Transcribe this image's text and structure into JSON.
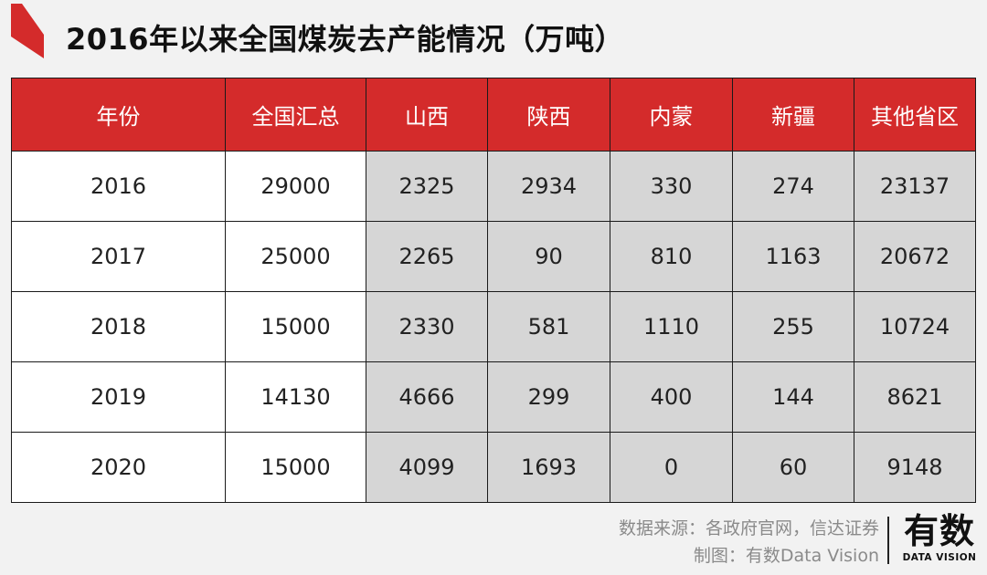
{
  "title": "2016年以来全国煤炭去产能情况（万吨）",
  "colors": {
    "header_bg": "#d42b2b",
    "header_text": "#ffffff",
    "accent_mark": "#d42b2b",
    "cell_white": "#ffffff",
    "cell_gray": "#d6d6d6",
    "background": "#f2f2f2"
  },
  "chart_data": {
    "type": "table",
    "title": "2016年以来全国煤炭去产能情况（万吨）",
    "columns": [
      "年份",
      "全国汇总",
      "山西",
      "陕西",
      "内蒙",
      "新疆",
      "其他省区"
    ],
    "rows": [
      [
        "2016",
        "29000",
        "2325",
        "2934",
        "330",
        "274",
        "23137"
      ],
      [
        "2017",
        "25000",
        "2265",
        "90",
        "810",
        "1163",
        "20672"
      ],
      [
        "2018",
        "15000",
        "2330",
        "581",
        "1110",
        "255",
        "10724"
      ],
      [
        "2019",
        "14130",
        "4666",
        "299",
        "400",
        "144",
        "8621"
      ],
      [
        "2020",
        "15000",
        "4099",
        "1693",
        "0",
        "60",
        "9148"
      ]
    ]
  },
  "footer": {
    "source": "数据来源：各政府官网，信达证券",
    "credit": "制图：有数Data Vision"
  },
  "logo": {
    "main": "有数",
    "sub": "DATA VISION"
  }
}
